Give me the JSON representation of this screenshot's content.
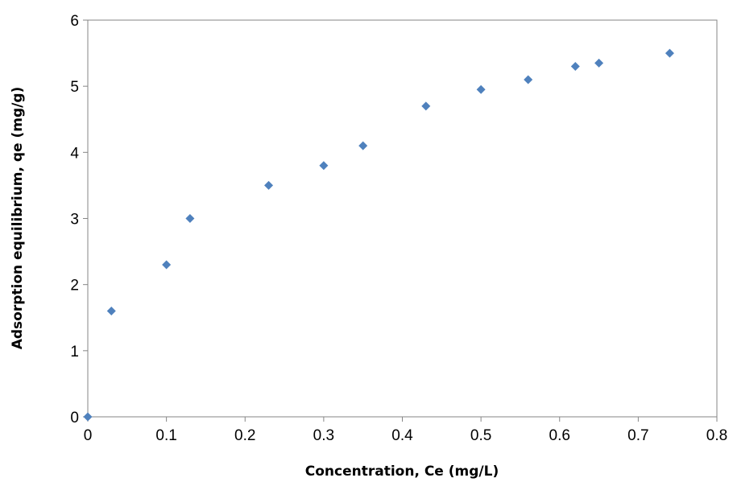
{
  "chart_data": {
    "type": "scatter",
    "title": "",
    "xlabel": "Concentration, Ce (mg/L)",
    "ylabel": "Adsorption equilibrium, qe (mg/g)",
    "xlim": [
      0,
      0.8
    ],
    "ylim": [
      0,
      6
    ],
    "xticks": [
      0,
      0.1,
      0.2,
      0.3,
      0.4,
      0.5,
      0.6,
      0.7,
      0.8
    ],
    "yticks": [
      0,
      1,
      2,
      3,
      4,
      5,
      6
    ],
    "xtick_labels": [
      "0",
      "0.1",
      "0.2",
      "0.3",
      "0.4",
      "0.5",
      "0.6",
      "0.7",
      "0.8"
    ],
    "ytick_labels": [
      "0",
      "1",
      "2",
      "3",
      "4",
      "5",
      "6"
    ],
    "grid": false,
    "legend": "none",
    "marker": "diamond",
    "marker_color": "#4f81bd",
    "series": [
      {
        "x": [
          0,
          0.03,
          0.1,
          0.13,
          0.23,
          0.3,
          0.35,
          0.43,
          0.5,
          0.56,
          0.62,
          0.65,
          0.74
        ],
        "y": [
          0,
          1.6,
          2.3,
          3.0,
          3.5,
          3.8,
          4.1,
          4.7,
          4.95,
          5.1,
          5.3,
          5.35,
          5.5
        ]
      }
    ]
  }
}
